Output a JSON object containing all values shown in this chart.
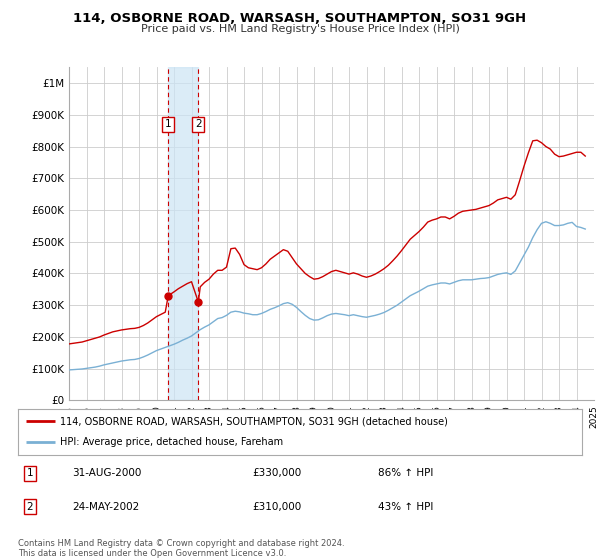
{
  "title": "114, OSBORNE ROAD, WARSASH, SOUTHAMPTON, SO31 9GH",
  "subtitle": "Price paid vs. HM Land Registry's House Price Index (HPI)",
  "ylim": [
    0,
    1050000
  ],
  "yticks": [
    0,
    100000,
    200000,
    300000,
    400000,
    500000,
    600000,
    700000,
    800000,
    900000,
    1000000
  ],
  "ytick_labels": [
    "£0",
    "£100K",
    "£200K",
    "£300K",
    "£400K",
    "£500K",
    "£600K",
    "£700K",
    "£800K",
    "£900K",
    "£1M"
  ],
  "background_color": "#ffffff",
  "grid_color": "#cccccc",
  "red_line_color": "#cc0000",
  "blue_line_color": "#7ab0d4",
  "transaction1": {
    "date": 2000.67,
    "price": 330000
  },
  "transaction2": {
    "date": 2002.39,
    "price": 310000
  },
  "legend_red": "114, OSBORNE ROAD, WARSASH, SOUTHAMPTON, SO31 9GH (detached house)",
  "legend_blue": "HPI: Average price, detached house, Fareham",
  "table_rows": [
    {
      "num": "1",
      "date": "31-AUG-2000",
      "price": "£330,000",
      "hpi": "86% ↑ HPI"
    },
    {
      "num": "2",
      "date": "24-MAY-2002",
      "price": "£310,000",
      "hpi": "43% ↑ HPI"
    }
  ],
  "footnote": "Contains HM Land Registry data © Crown copyright and database right 2024.\nThis data is licensed under the Open Government Licence v3.0.",
  "hpi_data": {
    "years": [
      1995.0,
      1995.25,
      1995.5,
      1995.75,
      1996.0,
      1996.25,
      1996.5,
      1996.75,
      1997.0,
      1997.25,
      1997.5,
      1997.75,
      1998.0,
      1998.25,
      1998.5,
      1998.75,
      1999.0,
      1999.25,
      1999.5,
      1999.75,
      2000.0,
      2000.25,
      2000.5,
      2000.75,
      2001.0,
      2001.25,
      2001.5,
      2001.75,
      2002.0,
      2002.25,
      2002.5,
      2002.75,
      2003.0,
      2003.25,
      2003.5,
      2003.75,
      2004.0,
      2004.25,
      2004.5,
      2004.75,
      2005.0,
      2005.25,
      2005.5,
      2005.75,
      2006.0,
      2006.25,
      2006.5,
      2006.75,
      2007.0,
      2007.25,
      2007.5,
      2007.75,
      2008.0,
      2008.25,
      2008.5,
      2008.75,
      2009.0,
      2009.25,
      2009.5,
      2009.75,
      2010.0,
      2010.25,
      2010.5,
      2010.75,
      2011.0,
      2011.25,
      2011.5,
      2011.75,
      2012.0,
      2012.25,
      2012.5,
      2012.75,
      2013.0,
      2013.25,
      2013.5,
      2013.75,
      2014.0,
      2014.25,
      2014.5,
      2014.75,
      2015.0,
      2015.25,
      2015.5,
      2015.75,
      2016.0,
      2016.25,
      2016.5,
      2016.75,
      2017.0,
      2017.25,
      2017.5,
      2017.75,
      2018.0,
      2018.25,
      2018.5,
      2018.75,
      2019.0,
      2019.25,
      2019.5,
      2019.75,
      2020.0,
      2020.25,
      2020.5,
      2020.75,
      2021.0,
      2021.25,
      2021.5,
      2021.75,
      2022.0,
      2022.25,
      2022.5,
      2022.75,
      2023.0,
      2023.25,
      2023.5,
      2023.75,
      2024.0,
      2024.25,
      2024.5
    ],
    "values": [
      96000,
      97000,
      98000,
      99000,
      101000,
      103000,
      105000,
      108000,
      112000,
      115000,
      118000,
      121000,
      124000,
      126000,
      128000,
      129000,
      132000,
      137000,
      143000,
      150000,
      157000,
      162000,
      167000,
      172000,
      177000,
      183000,
      190000,
      196000,
      203000,
      213000,
      223000,
      231000,
      238000,
      248000,
      258000,
      261000,
      268000,
      278000,
      281000,
      279000,
      275000,
      273000,
      270000,
      270000,
      274000,
      280000,
      287000,
      292000,
      298000,
      305000,
      308000,
      303000,
      293000,
      280000,
      268000,
      258000,
      253000,
      254000,
      260000,
      267000,
      272000,
      274000,
      272000,
      270000,
      267000,
      270000,
      267000,
      264000,
      262000,
      265000,
      268000,
      272000,
      277000,
      284000,
      292000,
      300000,
      310000,
      320000,
      330000,
      337000,
      344000,
      352000,
      360000,
      364000,
      367000,
      370000,
      370000,
      367000,
      372000,
      377000,
      380000,
      380000,
      380000,
      382000,
      384000,
      385000,
      387000,
      392000,
      397000,
      400000,
      402000,
      397000,
      408000,
      433000,
      458000,
      483000,
      513000,
      538000,
      558000,
      563000,
      558000,
      551000,
      551000,
      553000,
      558000,
      561000,
      548000,
      545000,
      540000
    ]
  },
  "red_data": {
    "years": [
      1995.0,
      1995.25,
      1995.5,
      1995.75,
      1996.0,
      1996.25,
      1996.5,
      1996.75,
      1997.0,
      1997.25,
      1997.5,
      1997.75,
      1998.0,
      1998.25,
      1998.5,
      1998.75,
      1999.0,
      1999.25,
      1999.5,
      1999.75,
      2000.0,
      2000.25,
      2000.5,
      2000.67,
      2001.0,
      2001.25,
      2001.5,
      2001.75,
      2002.0,
      2002.39,
      2002.5,
      2002.75,
      2003.0,
      2003.25,
      2003.5,
      2003.75,
      2004.0,
      2004.25,
      2004.5,
      2004.75,
      2005.0,
      2005.25,
      2005.5,
      2005.75,
      2006.0,
      2006.25,
      2006.5,
      2006.75,
      2007.0,
      2007.25,
      2007.5,
      2007.75,
      2008.0,
      2008.25,
      2008.5,
      2008.75,
      2009.0,
      2009.25,
      2009.5,
      2009.75,
      2010.0,
      2010.25,
      2010.5,
      2010.75,
      2011.0,
      2011.25,
      2011.5,
      2011.75,
      2012.0,
      2012.25,
      2012.5,
      2012.75,
      2013.0,
      2013.25,
      2013.5,
      2013.75,
      2014.0,
      2014.25,
      2014.5,
      2014.75,
      2015.0,
      2015.25,
      2015.5,
      2015.75,
      2016.0,
      2016.25,
      2016.5,
      2016.75,
      2017.0,
      2017.25,
      2017.5,
      2017.75,
      2018.0,
      2018.25,
      2018.5,
      2018.75,
      2019.0,
      2019.25,
      2019.5,
      2019.75,
      2020.0,
      2020.25,
      2020.5,
      2020.75,
      2021.0,
      2021.25,
      2021.5,
      2021.75,
      2022.0,
      2022.25,
      2022.5,
      2022.75,
      2023.0,
      2023.25,
      2023.5,
      2023.75,
      2024.0,
      2024.25,
      2024.5
    ],
    "values": [
      178000,
      180000,
      182000,
      184000,
      188000,
      192000,
      196000,
      200000,
      206000,
      211000,
      216000,
      219000,
      222000,
      224000,
      226000,
      227000,
      230000,
      236000,
      244000,
      254000,
      264000,
      271000,
      278000,
      330000,
      342000,
      352000,
      360000,
      368000,
      374000,
      310000,
      358000,
      372000,
      382000,
      398000,
      410000,
      410000,
      420000,
      478000,
      480000,
      460000,
      428000,
      418000,
      415000,
      412000,
      418000,
      430000,
      445000,
      455000,
      465000,
      475000,
      470000,
      450000,
      430000,
      415000,
      400000,
      390000,
      382000,
      384000,
      390000,
      398000,
      406000,
      410000,
      406000,
      402000,
      398000,
      402000,
      398000,
      392000,
      388000,
      392000,
      398000,
      406000,
      415000,
      426000,
      440000,
      455000,
      472000,
      490000,
      508000,
      520000,
      532000,
      546000,
      562000,
      568000,
      572000,
      578000,
      578000,
      572000,
      580000,
      590000,
      596000,
      598000,
      600000,
      602000,
      606000,
      610000,
      614000,
      622000,
      632000,
      636000,
      640000,
      634000,
      648000,
      692000,
      738000,
      780000,
      818000,
      820000,
      812000,
      800000,
      792000,
      776000,
      768000,
      770000,
      774000,
      778000,
      782000,
      782000,
      770000
    ]
  }
}
